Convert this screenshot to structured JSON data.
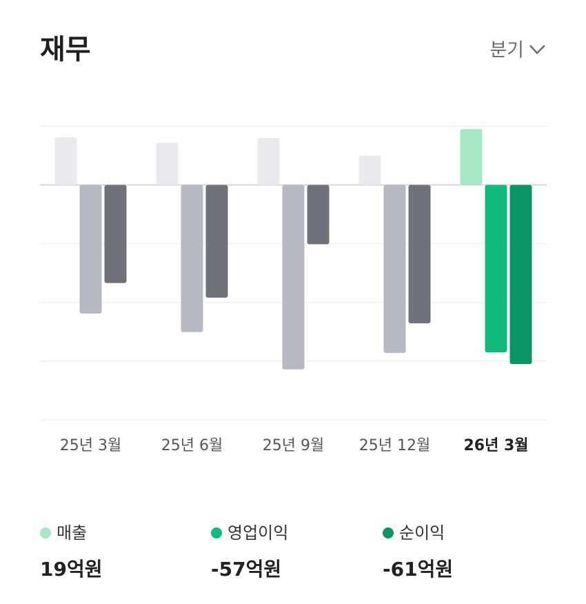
{
  "header": {
    "title": "재무",
    "period_selector": "분기"
  },
  "chart_data": {
    "type": "bar",
    "categories": [
      "25년 3월",
      "25년 6월",
      "25년 9월",
      "25년 12월",
      "26년 3월"
    ],
    "highlighted_category": 4,
    "series": [
      {
        "name": "매출",
        "color": "#a6e7c6",
        "muted_color": "#e8eaee",
        "values": [
          16.2,
          14.4,
          16,
          9.9,
          19
        ],
        "value_labels": [
          null,
          null,
          null,
          null,
          "19억원"
        ]
      },
      {
        "name": "영업이익",
        "color": "#10bb7c",
        "muted_color": "#b6b9c1",
        "values": [
          -43.8,
          -50.1,
          -62.8,
          -57.2,
          -57
        ],
        "value_labels": [
          null,
          null,
          null,
          null,
          "-57억원"
        ]
      },
      {
        "name": "순이익",
        "color": "#0a9566",
        "muted_color": "#6f7278",
        "values": [
          -33.4,
          -38.4,
          -20.2,
          -47.1,
          -61
        ],
        "value_labels": [
          null,
          null,
          null,
          null,
          "-61억원"
        ]
      }
    ],
    "ylim": [
      -80,
      20
    ],
    "yticks": [
      -80,
      -60,
      -40,
      -20,
      0,
      20
    ],
    "grid": true
  }
}
